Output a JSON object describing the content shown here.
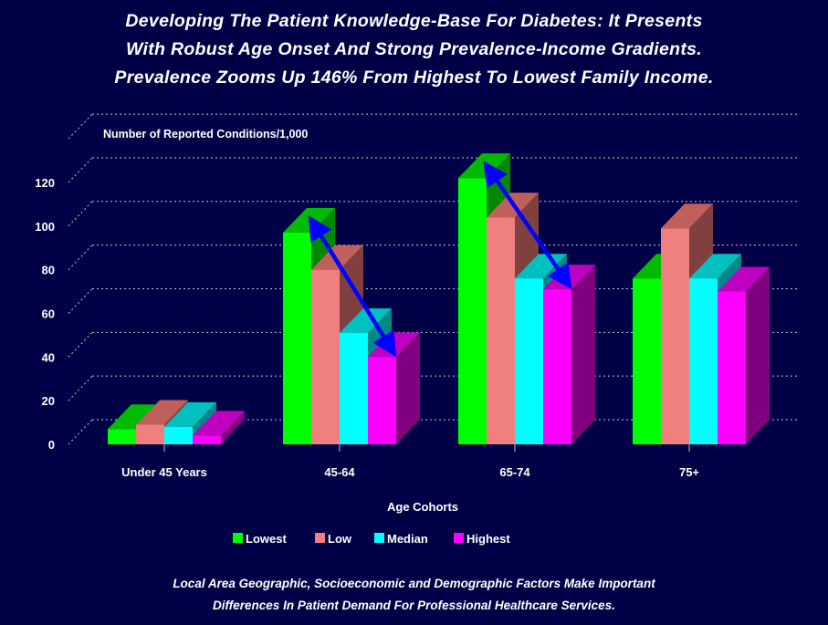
{
  "title": {
    "line1": "Developing The Patient Knowledge-Base For Diabetes: It Presents",
    "line2": "With Robust Age Onset And Strong Prevalence-Income Gradients.",
    "line3": "Prevalence Zooms Up 146% From Highest To Lowest Family Income."
  },
  "footer": {
    "line1": "Local Area Geographic, Socioeconomic and Demographic Factors Make Important",
    "line2": "Differences In Patient Demand For Professional Healthcare Services."
  },
  "chart_data": {
    "type": "bar",
    "style": "3d-clustered",
    "ylabel": "Number of Reported Conditions/1,000",
    "xlabel": "Age Cohorts",
    "categories": [
      "Under 45 Years",
      "45-64",
      "65-74",
      "75+"
    ],
    "yticks": [
      0,
      20,
      40,
      60,
      80,
      100,
      120
    ],
    "ylim": [
      0,
      140
    ],
    "grid": true,
    "legend_position": "bottom",
    "series": [
      {
        "name": "Lowest",
        "values": [
          7,
          97,
          122,
          76
        ],
        "color": "#00ff00",
        "top": "#00bb00",
        "side": "#008800"
      },
      {
        "name": "Low",
        "values": [
          9,
          80,
          104,
          99
        ],
        "color": "#f08080",
        "top": "#c0605a",
        "side": "#804040"
      },
      {
        "name": "Median",
        "values": [
          8,
          51,
          76,
          76
        ],
        "color": "#00ffff",
        "top": "#00c0c0",
        "side": "#008888"
      },
      {
        "name": "Highest",
        "values": [
          4,
          40,
          71,
          70
        ],
        "color": "#ff00ff",
        "top": "#c000c0",
        "side": "#800080"
      }
    ],
    "annotations": [
      {
        "type": "double-arrow",
        "category": "45-64",
        "from_series": "Lowest",
        "to_series": "Highest",
        "color": "#0000ff"
      },
      {
        "type": "double-arrow",
        "category": "65-74",
        "from_series": "Lowest",
        "to_series": "Highest",
        "color": "#0000ff"
      }
    ]
  }
}
